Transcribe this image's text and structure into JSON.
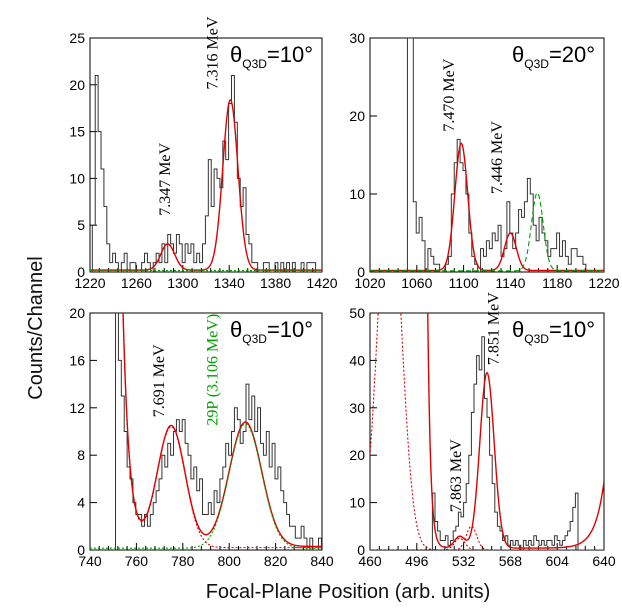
{
  "figure": {
    "ylabel": "Counts/Channel",
    "xlabel": "Focal-Plane Position (arb. units)"
  },
  "colors": {
    "histogram": "#333333",
    "fit": "#e00000",
    "component": "#e00000",
    "background": "#00a000"
  },
  "chart_data": [
    {
      "type": "line",
      "angle_label": {
        "prefix": "θ",
        "sub": "Q3D",
        "suffix": "=10°"
      },
      "xlim": [
        1220,
        1420
      ],
      "ylim": [
        0,
        25
      ],
      "xticks": [
        "1220",
        "1260",
        "1300",
        "1340",
        "1380",
        "1420"
      ],
      "yticks": [
        "0",
        "5",
        "10",
        "15",
        "20",
        "25"
      ],
      "histogram": {
        "x0": 1222,
        "bin": 2.5,
        "values": [
          5,
          21,
          15,
          11,
          7,
          3,
          1,
          2,
          1,
          0,
          1,
          2,
          0,
          1,
          1,
          0,
          0,
          1,
          2,
          1,
          0,
          1,
          2,
          1,
          3,
          1,
          4,
          3,
          2,
          4,
          3,
          1,
          3,
          2,
          3,
          1,
          2,
          1,
          3,
          6,
          12,
          7,
          11,
          10,
          9,
          14,
          12,
          18,
          21,
          16,
          10,
          7,
          9,
          4,
          3,
          1,
          1,
          0,
          0,
          1,
          1,
          0,
          0,
          1,
          0,
          1,
          0,
          1,
          0,
          1,
          0,
          0,
          1,
          0,
          1,
          1,
          1,
          0,
          0
        ]
      },
      "curves": [
        {
          "name": "fit",
          "style": "solid",
          "color": "#e00000",
          "baseline": 0.2,
          "peaks": [
            [
              1287,
              2.8,
              6
            ],
            [
              1341,
              18.2,
              6.5
            ]
          ]
        },
        {
          "name": "background",
          "style": "dotted",
          "color": "#00a000",
          "baseline": 0.15,
          "peaks": []
        }
      ],
      "annotations": [
        {
          "text": "7.347 MeV",
          "color": "#000000",
          "x": 1289,
          "y": 6
        },
        {
          "text": "7.316 MeV",
          "color": "#000000",
          "x": 1330,
          "y": 19.5
        }
      ]
    },
    {
      "type": "line",
      "angle_label": {
        "prefix": "θ",
        "sub": "Q3D",
        "suffix": "=20°"
      },
      "xlim": [
        1020,
        1220
      ],
      "ylim": [
        0,
        30
      ],
      "xticks": [
        "1020",
        "1060",
        "1100",
        "1140",
        "1180",
        "1220"
      ],
      "yticks": [
        "30",
        "20",
        "10",
        "0"
      ],
      "yticks_at": [
        30,
        20,
        10,
        0
      ],
      "histogram": {
        "x0": 1052,
        "bin": 2.5,
        "values": [
          30,
          30,
          9,
          5,
          7,
          4,
          0,
          3,
          2,
          1,
          1,
          0,
          0,
          1,
          2,
          10,
          14,
          17,
          14,
          13,
          10,
          5,
          2,
          1,
          0,
          3,
          2,
          4,
          3,
          5,
          4,
          6,
          2,
          3,
          9,
          5,
          3,
          5,
          8,
          7,
          9,
          12,
          10,
          6,
          4,
          7,
          5,
          4,
          2,
          3,
          3,
          5,
          2,
          4,
          2,
          1,
          3,
          3,
          2,
          2,
          1,
          0,
          0,
          0,
          0,
          0,
          0
        ]
      },
      "curves": [
        {
          "name": "fit",
          "style": "solid",
          "color": "#e00000",
          "baseline": 0.2,
          "peaks": [
            [
              1098,
              16.3,
              5.5
            ],
            [
              1140,
              4.8,
              5
            ]
          ]
        },
        {
          "name": "component",
          "style": "dashed",
          "color": "#00a000",
          "baseline": 0.15,
          "peaks": [
            [
              1163,
              10,
              5
            ]
          ]
        }
      ],
      "annotations": [
        {
          "text": "7.470 MeV",
          "color": "#000000",
          "x": 1092,
          "y": 18
        },
        {
          "text": "7.446 MeV",
          "color": "#000000",
          "x": 1133,
          "y": 10
        }
      ]
    },
    {
      "type": "line",
      "angle_label": {
        "prefix": "θ",
        "sub": "Q3D",
        "suffix": "=10°"
      },
      "xlim": [
        740,
        840
      ],
      "ylim": [
        0,
        20
      ],
      "xticks": [
        "740",
        "760",
        "780",
        "800",
        "820",
        "840"
      ],
      "yticks": [
        "0",
        "4",
        "8",
        "12",
        "16",
        "20"
      ],
      "histogram": {
        "x0": 751,
        "bin": 1.25,
        "values": [
          20,
          16,
          13,
          10,
          7,
          6,
          4,
          3,
          3,
          2,
          3,
          2,
          3,
          4,
          5,
          6,
          8,
          7,
          9,
          8,
          10,
          11,
          10,
          11,
          9,
          8,
          6,
          7,
          5,
          6,
          3,
          3,
          4,
          3,
          5,
          4,
          6,
          7,
          9,
          8,
          10,
          12,
          11,
          9,
          10,
          14,
          11,
          13,
          10,
          12,
          9,
          8,
          10,
          7,
          9,
          6,
          7,
          5,
          4,
          3,
          2,
          2,
          1,
          1,
          2,
          1,
          0,
          1,
          0,
          0,
          1
        ]
      },
      "curves": [
        {
          "name": "fit",
          "style": "solid",
          "color": "#e00000",
          "baseline": 0.3,
          "tail": [
            15,
            755,
            2.8
          ],
          "peaks": [
            [
              775,
              10.2,
              6
            ],
            [
              807,
              10.5,
              7
            ]
          ]
        },
        {
          "name": "component",
          "style": "dotted",
          "color": "#00a000",
          "baseline": 0.15,
          "peaks": [
            [
              807,
              10.5,
              7
            ]
          ]
        },
        {
          "name": "component",
          "style": "dotted",
          "color": "#e00000",
          "baseline": 0.2,
          "tail": [
            15,
            755,
            2.8
          ],
          "peaks": [
            [
              775,
              10.2,
              6
            ]
          ]
        }
      ],
      "annotations": [
        {
          "text": "7.691 MeV",
          "color": "#000000",
          "x": 772,
          "y": 11.2
        },
        {
          "text": "29P (3.106 MeV)",
          "color": "#00a000",
          "x": 795,
          "y": 10.5
        }
      ]
    },
    {
      "type": "line",
      "angle_label": {
        "prefix": "θ",
        "sub": "Q3D",
        "suffix": "=10°"
      },
      "xlim": [
        460,
        640
      ],
      "ylim": [
        0,
        50
      ],
      "xticks": [
        "460",
        "496",
        "532",
        "568",
        "604",
        "640"
      ],
      "yticks": [
        "0",
        "10",
        "20",
        "30",
        "40",
        "50"
      ],
      "histogram": {
        "x0": 508,
        "bin": 2.0,
        "values": [
          12,
          6,
          4,
          2,
          2,
          3,
          1,
          2,
          4,
          5,
          8,
          7,
          10,
          14,
          20,
          29,
          35,
          41,
          38,
          45,
          32,
          28,
          20,
          14,
          8,
          5,
          4,
          2,
          3,
          1,
          2,
          1,
          2,
          1,
          0,
          2,
          1,
          2,
          1,
          3,
          2,
          1,
          2,
          1,
          2,
          2,
          1,
          3,
          2,
          1,
          2,
          3,
          4,
          6,
          9,
          12
        ]
      },
      "curves": [
        {
          "name": "fit",
          "style": "solid",
          "color": "#e00000",
          "baseline": 0.4,
          "tail": [
            60,
            504,
            2.2
          ],
          "peaks": [
            [
              550,
              37,
              5.5
            ],
            [
              529,
              2.5,
              4
            ]
          ],
          "rise": [
            14,
            640,
            7
          ]
        },
        {
          "name": "component",
          "style": "dotted",
          "color": "#e00000",
          "baseline": 0,
          "peaks": [
            [
              475,
              80,
              9
            ]
          ]
        },
        {
          "name": "component",
          "style": "dotted",
          "color": "#e00000",
          "baseline": 0,
          "peaks": [
            [
              529,
              2.5,
              4
            ]
          ]
        },
        {
          "name": "component",
          "style": "dotted",
          "color": "#e00000",
          "baseline": 0,
          "peaks": [
            [
              538,
              5,
              4
            ]
          ]
        }
      ],
      "annotations": [
        {
          "text": "7.863 MeV",
          "color": "#000000",
          "x": 530,
          "y": 8
        },
        {
          "text": "7.851 MeV",
          "color": "#000000",
          "x": 559,
          "y": 39
        }
      ]
    }
  ]
}
